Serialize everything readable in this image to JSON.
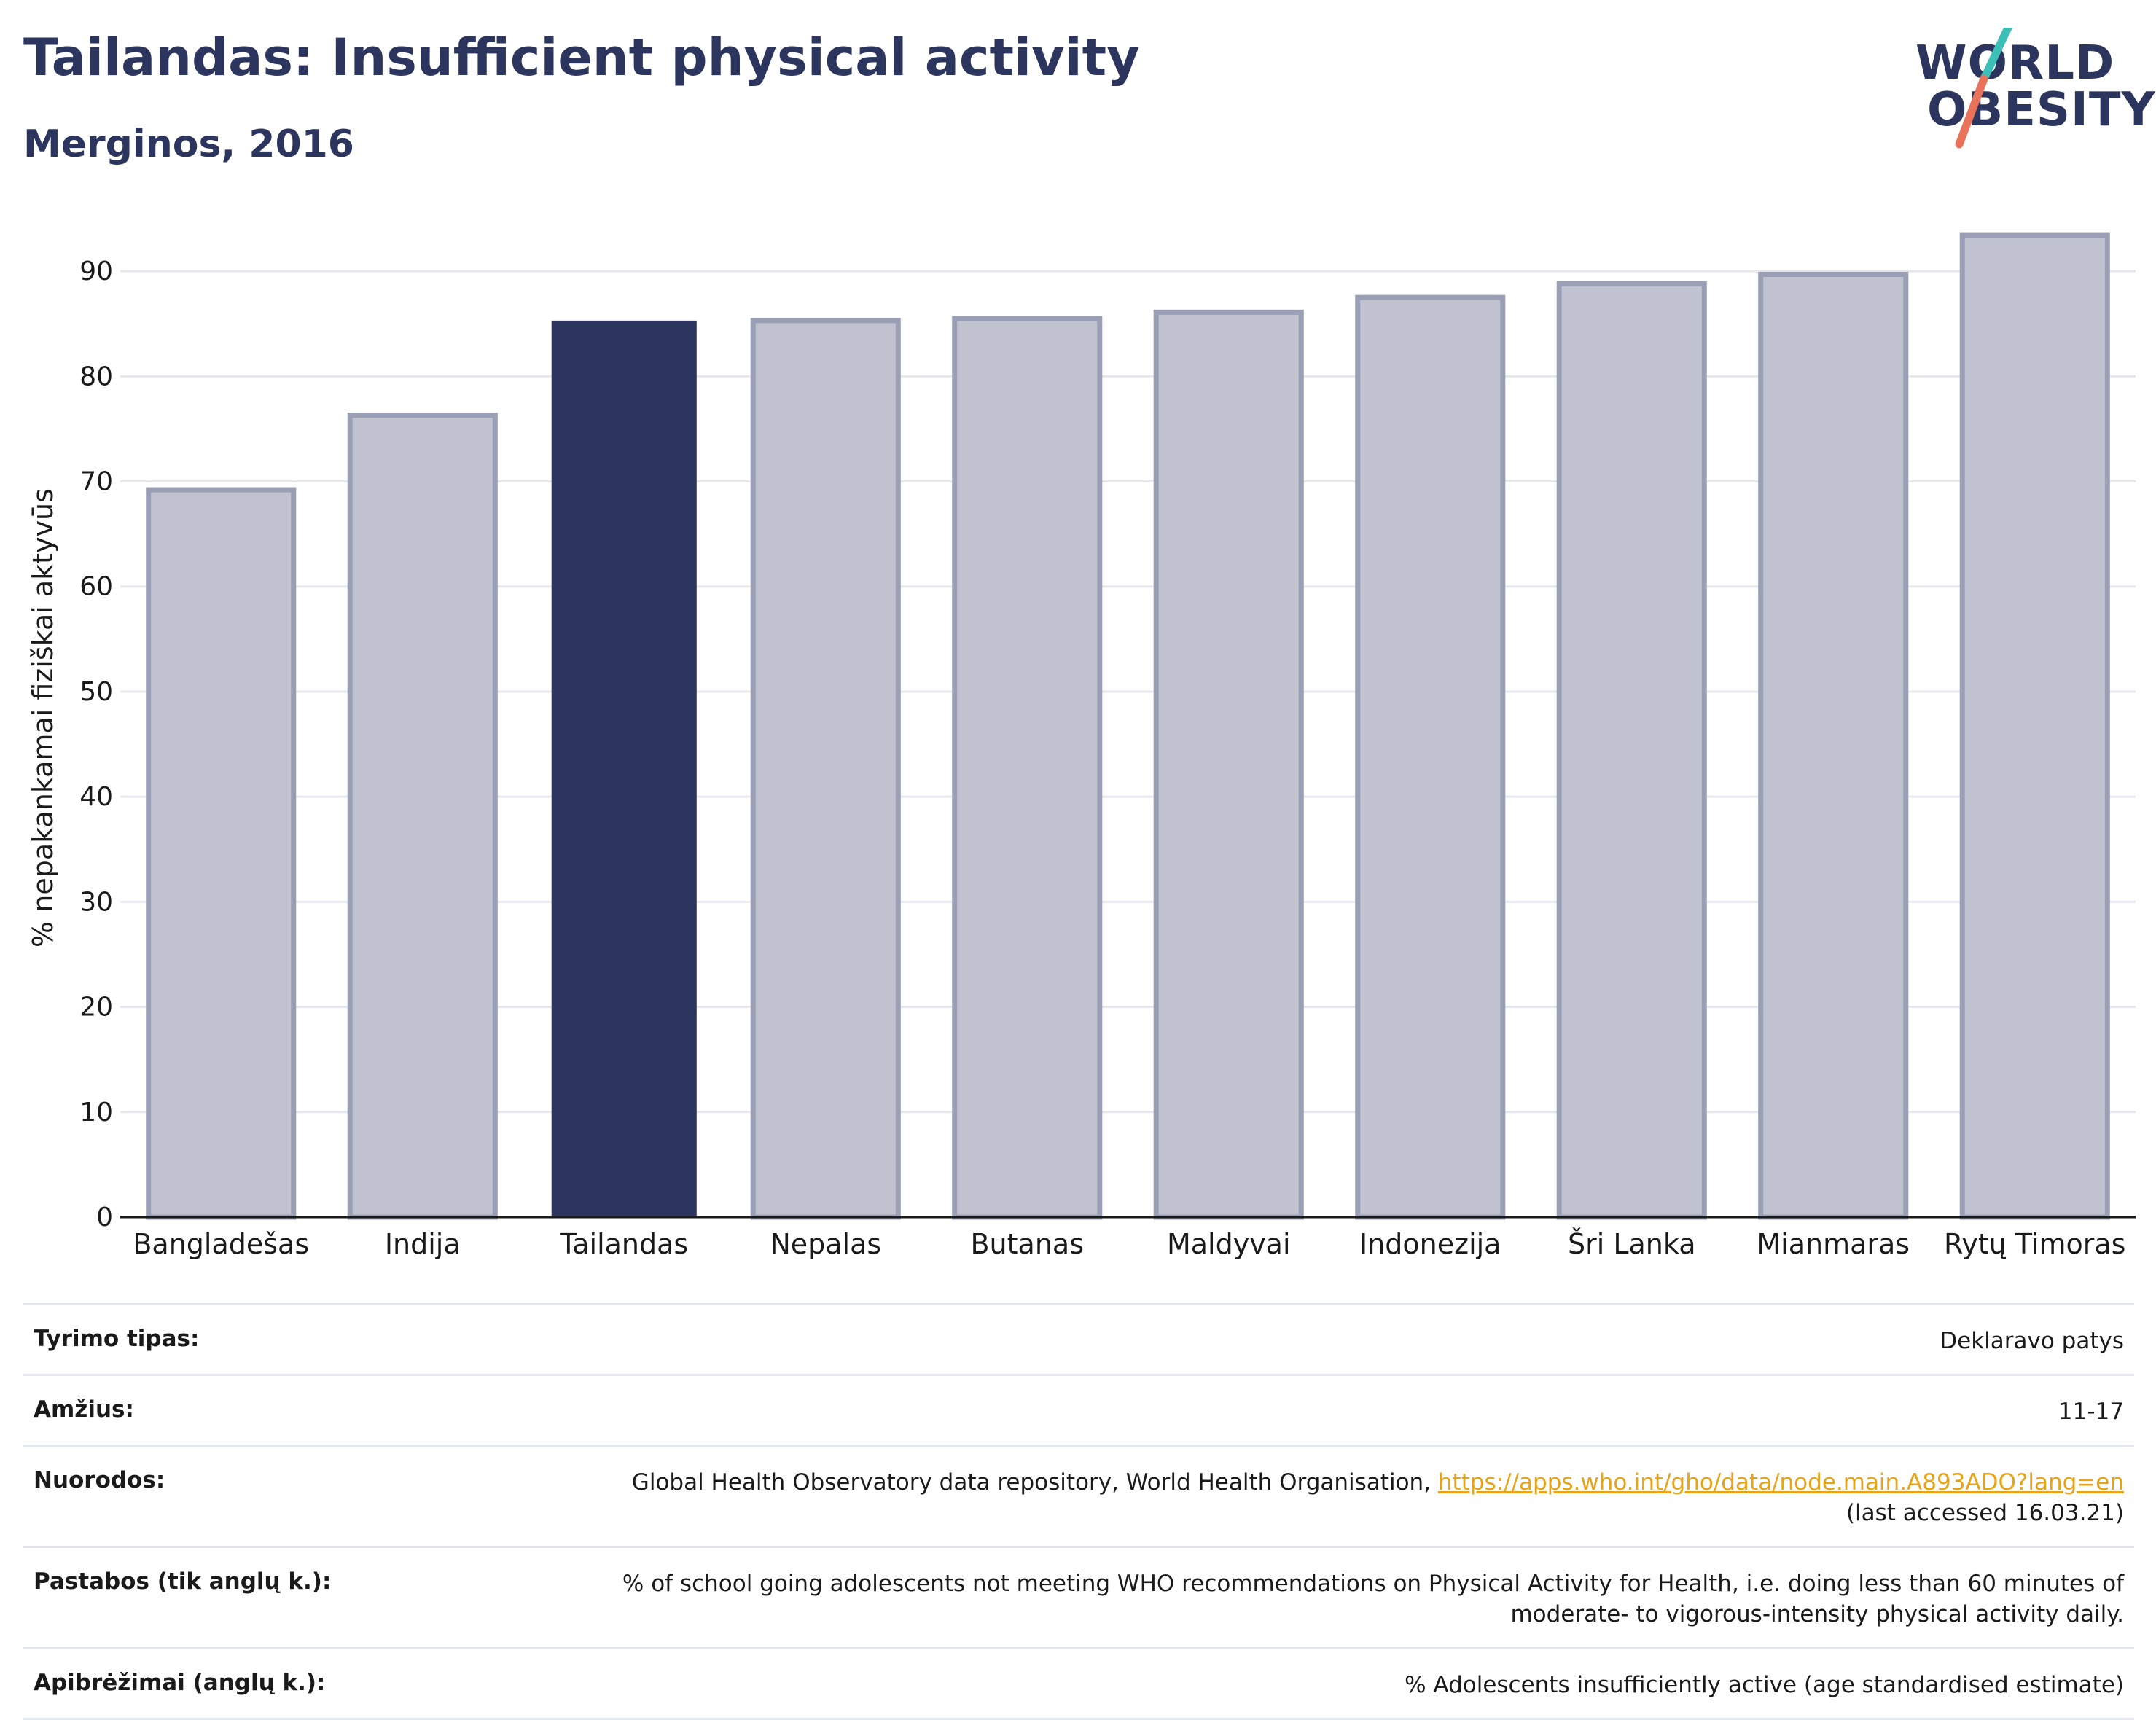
{
  "header": {
    "title": "Tailandas: Insufficient physical activity",
    "subtitle": "Merginos, 2016"
  },
  "logo": {
    "line1": "WORLD",
    "line2": "OBESITY",
    "text_color": "#2b355e",
    "slash_colors": [
      "#3dbfb8",
      "#e8735a"
    ]
  },
  "chart_data": {
    "type": "bar",
    "title": "",
    "xlabel": "",
    "ylabel": "% nepakankamai fiziškai aktyvūs",
    "ylim": [
      0,
      95
    ],
    "yticks": [
      0,
      10,
      20,
      30,
      40,
      50,
      60,
      70,
      80,
      90
    ],
    "grid": true,
    "categories": [
      "Bangladešas",
      "Indija",
      "Tailandas",
      "Nepalas",
      "Butanas",
      "Maldyvai",
      "Indonezija",
      "Šri Lanka",
      "Mianmaras",
      "Rytų Timoras"
    ],
    "values": [
      69.2,
      76.3,
      85.3,
      85.3,
      85.5,
      86.1,
      87.5,
      88.8,
      89.7,
      93.4
    ],
    "highlight": "Tailandas",
    "colors": {
      "highlight": "#2b355e",
      "default_fill": "#c0c3cf",
      "default_stroke": "#9a9fb5"
    }
  },
  "info_table": [
    {
      "label": "Tyrimo tipas:",
      "value": "Deklaravo patys"
    },
    {
      "label": "Amžius:",
      "value": "11-17"
    },
    {
      "label": "Nuorodos:",
      "value": "Global Health Observatory data repository, World Health Organisation, ",
      "link": "https://apps.who.int/gho/data/node.main.A893ADO?lang=en",
      "value_after": "(last accessed 16.03.21)"
    },
    {
      "label": "Pastabos (tik anglų k.):",
      "value": "% of school going adolescents not meeting WHO recommendations on Physical Activity for Health, i.e. doing less than 60 minutes of moderate- to vigorous-intensity physical activity daily."
    },
    {
      "label": "Apibrėžimai (anglų k.):",
      "value": "% Adolescents insufficiently active (age standardised estimate)"
    }
  ]
}
